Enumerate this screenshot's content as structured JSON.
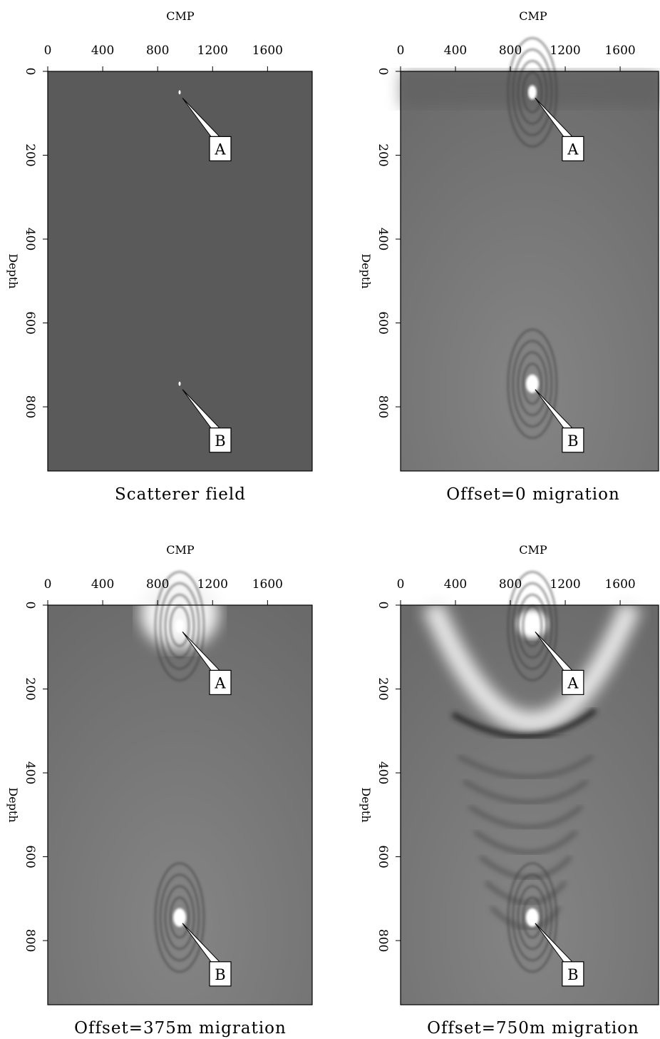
{
  "chart_data": [
    {
      "type": "image",
      "xlabel": "CMP",
      "ylabel": "Depth",
      "caption": "Scatterer field",
      "xlim": [
        0,
        1925
      ],
      "ylim": [
        0,
        953
      ],
      "yreverse": true,
      "xticks": [
        0,
        400,
        800,
        1200,
        1600
      ],
      "yticks": [
        0,
        200,
        400,
        600,
        800
      ],
      "annotations": [
        {
          "text": "A",
          "x": 960,
          "y": 50
        },
        {
          "text": "B",
          "x": 960,
          "y": 745
        }
      ]
    },
    {
      "type": "image",
      "xlabel": "CMP",
      "ylabel": "Depth",
      "caption": "Offset=0 migration",
      "xlim": [
        0,
        1880
      ],
      "ylim": [
        0,
        953
      ],
      "yreverse": true,
      "xticks": [
        0,
        400,
        800,
        1200,
        1600
      ],
      "yticks": [
        0,
        200,
        400,
        600,
        800
      ],
      "annotations": [
        {
          "text": "A",
          "x": 960,
          "y": 50
        },
        {
          "text": "B",
          "x": 960,
          "y": 745
        }
      ]
    },
    {
      "type": "image",
      "xlabel": "CMP",
      "ylabel": "Depth",
      "caption": "Offset=375m migration",
      "xlim": [
        0,
        1925
      ],
      "ylim": [
        0,
        953
      ],
      "yreverse": true,
      "xticks": [
        0,
        400,
        800,
        1200,
        1600
      ],
      "yticks": [
        0,
        200,
        400,
        600,
        800
      ],
      "annotations": [
        {
          "text": "A",
          "x": 960,
          "y": 50
        },
        {
          "text": "B",
          "x": 960,
          "y": 745
        }
      ]
    },
    {
      "type": "image",
      "xlabel": "CMP",
      "ylabel": "Depth",
      "caption": "Offset=750m migration",
      "xlim": [
        0,
        1880
      ],
      "ylim": [
        0,
        953
      ],
      "yreverse": true,
      "xticks": [
        0,
        400,
        800,
        1200,
        1600
      ],
      "yticks": [
        0,
        200,
        400,
        600,
        800
      ],
      "annotations": [
        {
          "text": "A",
          "x": 960,
          "y": 50
        },
        {
          "text": "B",
          "x": 960,
          "y": 745
        }
      ]
    }
  ]
}
